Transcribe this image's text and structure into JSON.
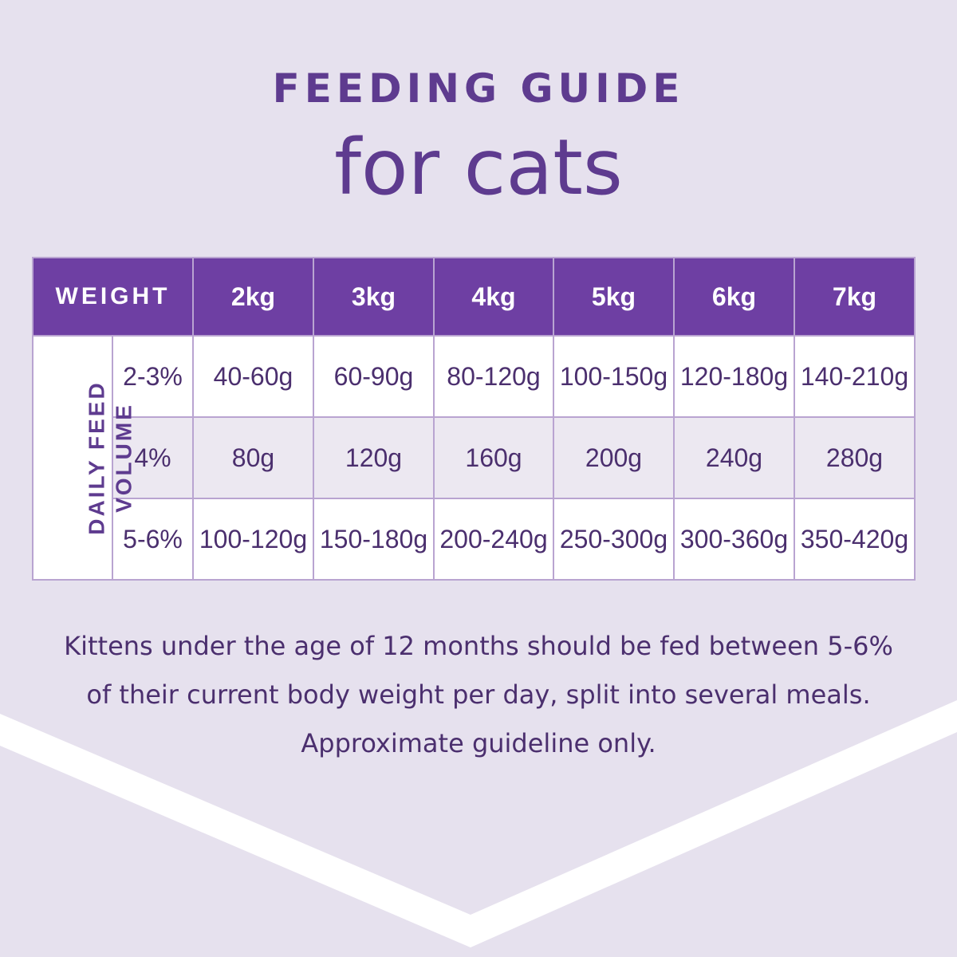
{
  "header": {
    "title": "FEEDING GUIDE",
    "subtitle": "for cats"
  },
  "colors": {
    "background": "#e6e1ee",
    "header_fill": "#6e3fa3",
    "text_purple": "#5e3b8f",
    "chevron": "#ffffff"
  },
  "table": {
    "weight_label": "WEIGHT",
    "weights": [
      "2kg",
      "3kg",
      "4kg",
      "5kg",
      "6kg",
      "7kg"
    ],
    "side_label": {
      "line1": "DAILY FEED",
      "line2": "VOLUME"
    },
    "rows": [
      {
        "percent": "2-3%",
        "values": [
          "40-60g",
          "60-90g",
          "80-120g",
          "100-150g",
          "120-180g",
          "140-210g"
        ]
      },
      {
        "percent": "4%",
        "values": [
          "80g",
          "120g",
          "160g",
          "200g",
          "240g",
          "280g"
        ]
      },
      {
        "percent": "5-6%",
        "values": [
          "100-120g",
          "150-180g",
          "200-240g",
          "250-300g",
          "300-360g",
          "350-420g"
        ]
      }
    ]
  },
  "note": {
    "line1": "Kittens under the age of 12 months should be fed between 5-6%",
    "line2": "of their current body weight per day, split into several meals.",
    "line3": "Approximate guideline only."
  }
}
